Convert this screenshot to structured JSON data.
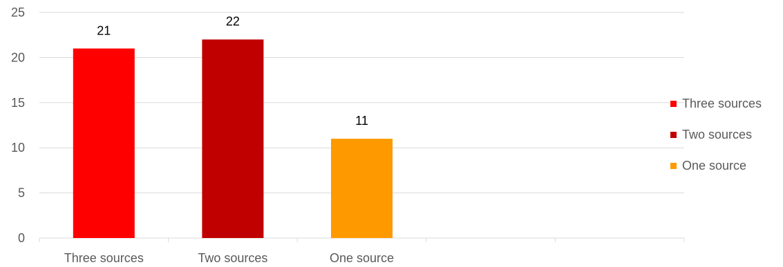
{
  "chart_data": {
    "type": "bar",
    "categories": [
      "Three sources",
      "Two sources",
      "One source",
      "",
      ""
    ],
    "values": [
      21,
      22,
      11,
      null,
      null
    ],
    "colors": [
      "#ff0000",
      "#c00000",
      "#ff9900"
    ],
    "ylim": [
      0,
      25
    ],
    "yticks": [
      0,
      5,
      10,
      15,
      20,
      25
    ],
    "grid": true,
    "legend_position": "right",
    "legend": [
      {
        "label": "Three sources",
        "color": "#ff0000"
      },
      {
        "label": "Two sources",
        "color": "#c00000"
      },
      {
        "label": "One source",
        "color": "#ff9900"
      }
    ]
  }
}
